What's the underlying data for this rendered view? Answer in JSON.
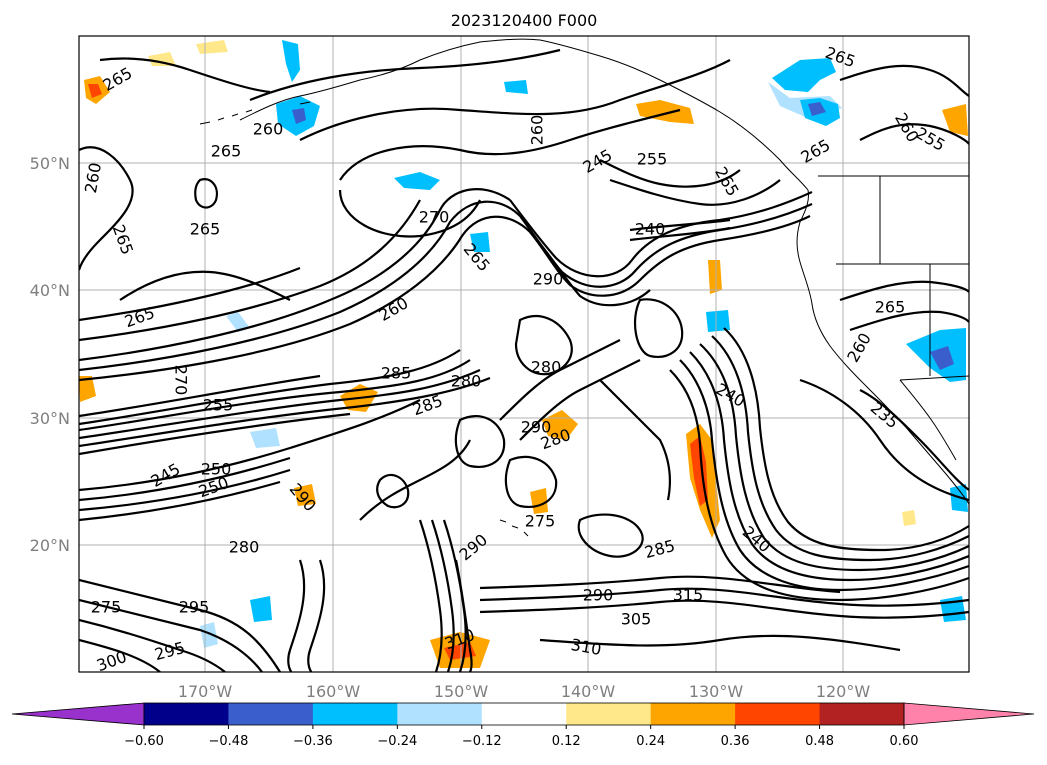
{
  "title": "2023120400 F000",
  "latitude_labels": [
    "50°N",
    "40°N",
    "30°N",
    "20°N"
  ],
  "longitude_labels": [
    "170°W",
    "160°W",
    "150°W",
    "140°W",
    "130°W",
    "120°W"
  ],
  "colorbar": {
    "tick_labels": [
      "−0.60",
      "−0.48",
      "−0.36",
      "−0.24",
      "−0.12",
      "0.12",
      "0.24",
      "0.36",
      "0.48",
      "0.60"
    ],
    "colors": [
      "#9932cc",
      "#00008b",
      "#3a5fcd",
      "#00bfff",
      "#b0e2ff",
      "#ffffff",
      "#ffe88a",
      "#ffa500",
      "#ff4500",
      "#b22222",
      "#ff82ab"
    ]
  },
  "contour_labels": [
    {
      "text": "265"
    },
    {
      "text": "260"
    },
    {
      "text": "265"
    },
    {
      "text": "260"
    },
    {
      "text": "265"
    },
    {
      "text": "265"
    },
    {
      "text": "270"
    },
    {
      "text": "265"
    },
    {
      "text": "260"
    },
    {
      "text": "290"
    },
    {
      "text": "245"
    },
    {
      "text": "255"
    },
    {
      "text": "265"
    },
    {
      "text": "240"
    },
    {
      "text": "265"
    },
    {
      "text": "265"
    },
    {
      "text": "260"
    },
    {
      "text": "255"
    },
    {
      "text": "265"
    },
    {
      "text": "260"
    },
    {
      "text": "265"
    },
    {
      "text": "260"
    },
    {
      "text": "285"
    },
    {
      "text": "280"
    },
    {
      "text": "285"
    },
    {
      "text": "280"
    },
    {
      "text": "290"
    },
    {
      "text": "280"
    },
    {
      "text": "240"
    },
    {
      "text": "250"
    },
    {
      "text": "235"
    },
    {
      "text": "245"
    },
    {
      "text": "250"
    },
    {
      "text": "255"
    },
    {
      "text": "280"
    },
    {
      "text": "290"
    },
    {
      "text": "275"
    },
    {
      "text": "285"
    },
    {
      "text": "290"
    },
    {
      "text": "310"
    },
    {
      "text": "305"
    },
    {
      "text": "315"
    },
    {
      "text": "295"
    },
    {
      "text": "275"
    },
    {
      "text": "300"
    },
    {
      "text": "295"
    },
    {
      "text": "290"
    },
    {
      "text": "310"
    },
    {
      "text": "270"
    },
    {
      "text": "240"
    }
  ],
  "map": {
    "contour_color": "#000000",
    "grid_color": "#b0b0b0",
    "coastline_color": "#000000"
  }
}
